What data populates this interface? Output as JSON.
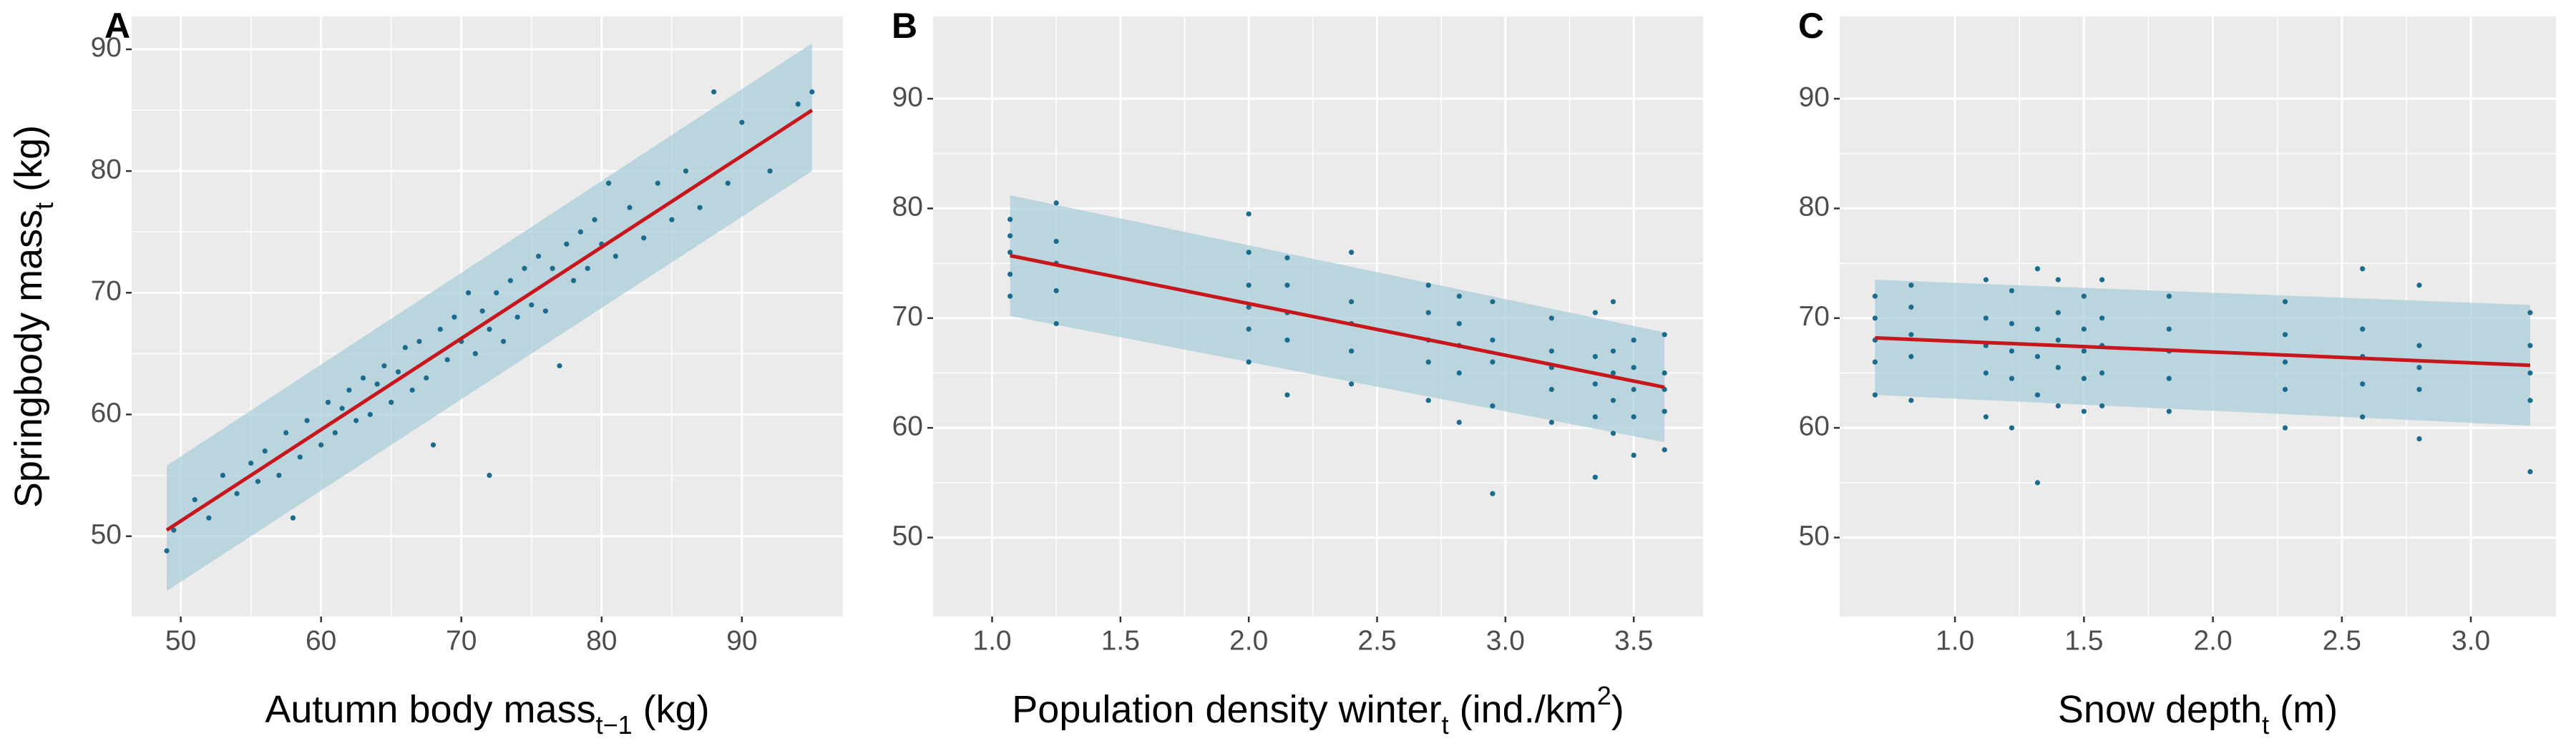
{
  "chart_data": [
    {
      "type": "scatter",
      "panel": "A",
      "xlabel": [
        {
          "text": "Autumn body mass"
        },
        {
          "text": "t−1",
          "shift": "sub"
        },
        {
          "text": " (kg)"
        }
      ],
      "ylabel": [
        {
          "text": "Springbody mass"
        },
        {
          "text": "t",
          "shift": "sub"
        },
        {
          "text": " (kg)"
        }
      ],
      "xlim": [
        46.5,
        97.2
      ],
      "ylim": [
        43.4,
        92.7
      ],
      "xticks": [
        50,
        60,
        70,
        80,
        90
      ],
      "yticks": [
        50,
        60,
        70,
        80,
        90
      ],
      "grid": true,
      "point_color": "#1a6b8c",
      "line_color": "#c8161d",
      "band_color": "#a9cdd8",
      "x": [
        49,
        49.5,
        51,
        52,
        53,
        54,
        55,
        55.5,
        56,
        57,
        57.5,
        58,
        58.5,
        59,
        60,
        60.5,
        61,
        61.5,
        62,
        62.5,
        63,
        63.5,
        64,
        64.5,
        65,
        65.5,
        66,
        66.5,
        67,
        67.5,
        68,
        68.5,
        69,
        69.5,
        70,
        70.5,
        71,
        71.5,
        72,
        72,
        72.5,
        73,
        73.5,
        74,
        74.5,
        75,
        75.5,
        76,
        76.5,
        77,
        77.5,
        78,
        78.5,
        79,
        79.5,
        80,
        80.5,
        81,
        82,
        83,
        84,
        85,
        86,
        87,
        88,
        89,
        90,
        92,
        94,
        95
      ],
      "y": [
        48.8,
        50.5,
        53,
        51.5,
        55,
        53.5,
        56,
        54.5,
        57,
        55,
        58.5,
        51.5,
        56.5,
        59.5,
        57.5,
        61,
        58.5,
        60.5,
        62,
        59.5,
        63,
        60,
        62.5,
        64,
        61,
        63.5,
        65.5,
        62,
        66,
        63,
        57.5,
        67,
        64.5,
        68,
        66,
        70,
        65,
        68.5,
        55,
        67,
        70,
        66,
        71,
        68,
        72,
        69,
        73,
        68.5,
        72,
        64,
        74,
        71,
        75,
        72,
        76,
        74,
        79,
        73,
        77,
        74.5,
        79,
        76,
        80,
        77,
        86.5,
        79,
        84,
        80,
        85.5,
        86.5
      ],
      "fit": {
        "x": [
          49,
          95
        ],
        "y": [
          50.5,
          85
        ]
      },
      "band": {
        "x": [
          49,
          95
        ],
        "lower": [
          45.5,
          80
        ],
        "upper": [
          55.8,
          90.5
        ]
      }
    },
    {
      "type": "scatter",
      "panel": "B",
      "xlabel": [
        {
          "text": "Population density winter"
        },
        {
          "text": "t",
          "shift": "sub"
        },
        {
          "text": " (ind./km"
        },
        {
          "text": "2",
          "shift": "sup"
        },
        {
          "text": ")"
        }
      ],
      "xlim": [
        0.77,
        3.77
      ],
      "ylim": [
        42.8,
        97.5
      ],
      "xticks": [
        {
          "value": 1,
          "label": "1.0"
        },
        1.5,
        {
          "value": 2,
          "label": "2.0"
        },
        2.5,
        {
          "value": 3,
          "label": "3.0"
        },
        3.5
      ],
      "yticks": [
        50,
        60,
        70,
        80,
        90
      ],
      "grid": true,
      "point_color": "#1a6b8c",
      "line_color": "#c8161d",
      "band_color": "#a9cdd8",
      "x": [
        1.07,
        1.07,
        1.07,
        1.07,
        1.07,
        1.25,
        1.25,
        1.25,
        1.25,
        1.25,
        2,
        2,
        2,
        2,
        2,
        2,
        2.15,
        2.15,
        2.15,
        2.15,
        2.15,
        2.4,
        2.4,
        2.4,
        2.4,
        2.4,
        2.7,
        2.7,
        2.7,
        2.7,
        2.7,
        2.82,
        2.82,
        2.82,
        2.82,
        2.82,
        2.95,
        2.95,
        2.95,
        2.95,
        2.95,
        3.18,
        3.18,
        3.18,
        3.18,
        3.18,
        3.35,
        3.35,
        3.35,
        3.35,
        3.35,
        3.42,
        3.42,
        3.42,
        3.42,
        3.42,
        3.5,
        3.5,
        3.5,
        3.5,
        3.5,
        3.62,
        3.62,
        3.62,
        3.62,
        3.62
      ],
      "y": [
        72,
        74,
        76,
        77.5,
        79,
        69.5,
        72.5,
        75,
        77,
        80.5,
        66,
        69,
        71,
        73,
        76,
        79.5,
        63,
        68,
        70.5,
        73,
        75.5,
        64,
        67,
        69.5,
        71.5,
        76,
        62.5,
        66,
        68,
        70.5,
        73,
        60.5,
        65,
        67.5,
        69.5,
        72,
        54,
        62,
        66,
        68,
        71.5,
        60.5,
        63.5,
        65.5,
        67,
        70,
        55.5,
        61,
        64,
        66.5,
        70.5,
        59.5,
        62.5,
        65,
        67,
        71.5,
        57.5,
        61,
        63.5,
        65.5,
        68,
        58,
        61.5,
        63.5,
        65,
        68.5
      ],
      "fit": {
        "x": [
          1.07,
          3.62
        ],
        "y": [
          75.7,
          63.7
        ]
      },
      "band": {
        "x": [
          1.07,
          3.62
        ],
        "lower": [
          70.2,
          58.7
        ],
        "upper": [
          81.2,
          68.7
        ]
      }
    },
    {
      "type": "scatter",
      "panel": "C",
      "xlabel": [
        {
          "text": "Snow depth"
        },
        {
          "text": "t",
          "shift": "sub"
        },
        {
          "text": " (m)"
        }
      ],
      "xlim": [
        0.553,
        3.33
      ],
      "ylim": [
        42.8,
        97.5
      ],
      "xticks": [
        {
          "value": 1,
          "label": "1.0"
        },
        1.5,
        {
          "value": 2,
          "label": "2.0"
        },
        2.5,
        {
          "value": 3,
          "label": "3.0"
        }
      ],
      "yticks": [
        50,
        60,
        70,
        80,
        90
      ],
      "grid": true,
      "point_color": "#1a6b8c",
      "line_color": "#c8161d",
      "band_color": "#a9cdd8",
      "x": [
        0.69,
        0.69,
        0.69,
        0.69,
        0.69,
        0.83,
        0.83,
        0.83,
        0.83,
        0.83,
        1.12,
        1.12,
        1.12,
        1.12,
        1.12,
        1.22,
        1.22,
        1.22,
        1.22,
        1.22,
        1.32,
        1.32,
        1.32,
        1.32,
        1.32,
        1.4,
        1.4,
        1.4,
        1.4,
        1.4,
        1.5,
        1.5,
        1.5,
        1.5,
        1.5,
        1.57,
        1.57,
        1.57,
        1.57,
        1.57,
        1.83,
        1.83,
        1.83,
        1.83,
        1.83,
        2.28,
        2.28,
        2.28,
        2.28,
        2.28,
        2.58,
        2.58,
        2.58,
        2.58,
        2.58,
        2.8,
        2.8,
        2.8,
        2.8,
        2.8,
        3.23,
        3.23,
        3.23,
        3.23,
        3.23
      ],
      "y": [
        63,
        66,
        68,
        70,
        72,
        62.5,
        66.5,
        68.5,
        71,
        73,
        61,
        65,
        67.5,
        70,
        73.5,
        60,
        64.5,
        67,
        69.5,
        72.5,
        55,
        63,
        66.5,
        69,
        74.5,
        62,
        65.5,
        68,
        70.5,
        73.5,
        61.5,
        64.5,
        67,
        69,
        72,
        62,
        65,
        67.5,
        70,
        73.5,
        61.5,
        64.5,
        67,
        69,
        72,
        60,
        63.5,
        66,
        68.5,
        71.5,
        61,
        64,
        66.5,
        69,
        74.5,
        59,
        63.5,
        65.5,
        67.5,
        73,
        56,
        62.5,
        65,
        67.5,
        70.5
      ],
      "fit": {
        "x": [
          0.69,
          3.23
        ],
        "y": [
          68.2,
          65.7
        ]
      },
      "band": {
        "x": [
          0.69,
          3.23
        ],
        "lower": [
          63,
          60.2
        ],
        "upper": [
          73.5,
          71.2
        ]
      }
    }
  ]
}
